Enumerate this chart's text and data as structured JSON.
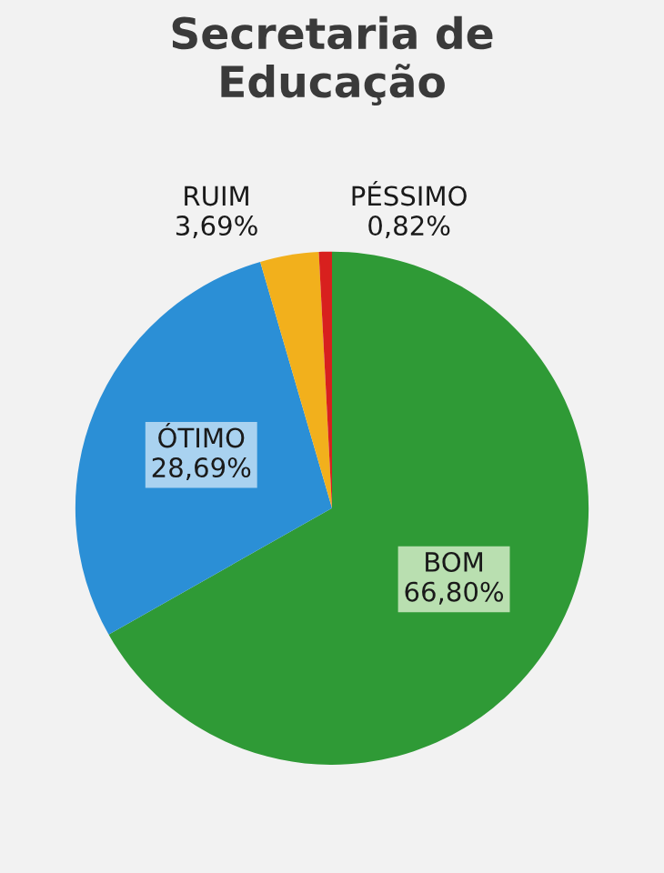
{
  "chart_data": {
    "type": "pie",
    "title": "Secretaria de\nEducação",
    "categories": [
      "BOM",
      "ÓTIMO",
      "RUIM",
      "PÉSSIMO"
    ],
    "values": [
      66.8,
      28.69,
      3.69,
      0.82
    ],
    "value_labels": [
      "66,80%",
      "28,69%",
      "3,69%",
      "0,82%"
    ],
    "colors": [
      "#2f9a36",
      "#2b8fd6",
      "#f2b01c",
      "#d8201e"
    ],
    "legend": false
  }
}
